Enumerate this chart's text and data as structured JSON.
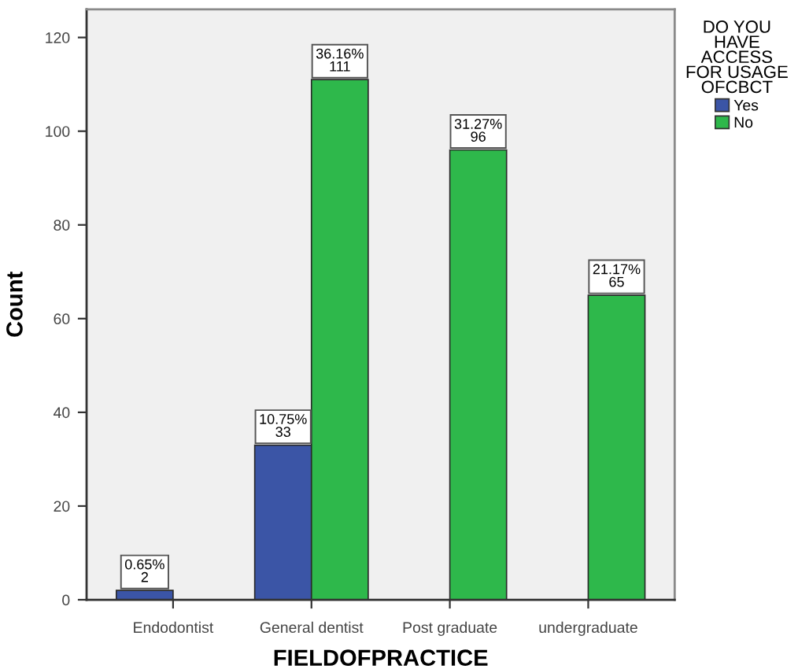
{
  "chart_data": {
    "type": "bar",
    "xlabel": "FIELDOFPRACTICE",
    "ylabel": "Count",
    "legend_title": "DO YOU\nHAVE\nACCESS\nFOR USAGE\nOFCBCT",
    "categories": [
      "Endodontist",
      "General dentist",
      "Post graduate",
      "undergraduate"
    ],
    "series": [
      {
        "name": "Yes",
        "color": "#3b55a6",
        "values": [
          2,
          33,
          null,
          null
        ],
        "value_labels": [
          "0.65%\n2",
          "10.75%\n33",
          null,
          null
        ]
      },
      {
        "name": "No",
        "color": "#2eb84b",
        "values": [
          null,
          111,
          96,
          65
        ],
        "value_labels": [
          null,
          "36.16%\n111",
          "31.27%\n96",
          "21.17%\n65"
        ]
      }
    ],
    "ylim": [
      0,
      126
    ],
    "yticks": [
      0,
      20,
      40,
      60,
      80,
      100,
      120
    ],
    "legend": "top right"
  }
}
